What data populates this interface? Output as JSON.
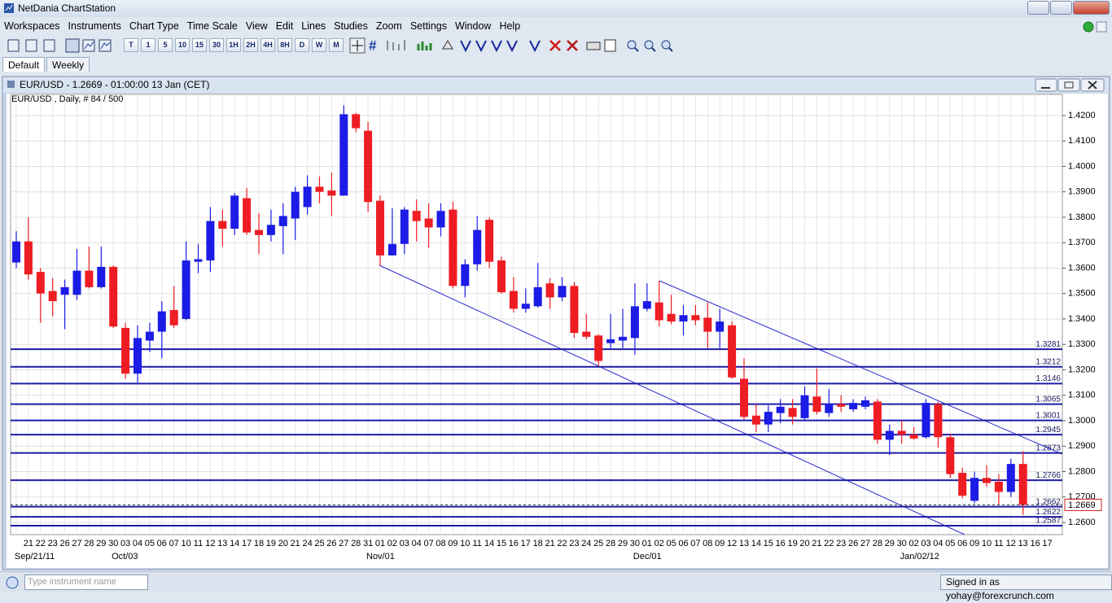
{
  "window": {
    "title": "NetDania ChartStation"
  },
  "menu": [
    "Workspaces",
    "Instruments",
    "Chart Type",
    "Time Scale",
    "View",
    "Edit",
    "Lines",
    "Studies",
    "Zoom",
    "Settings",
    "Window",
    "Help"
  ],
  "toolbar": {
    "timescales": [
      "T",
      "1",
      "5",
      "10",
      "15",
      "30",
      "1H",
      "2H",
      "4H",
      "8H",
      "D",
      "W",
      "M"
    ]
  },
  "tabs": [
    "Default",
    "Weekly"
  ],
  "chart_window": {
    "title": "EUR/USD - 1.2669 - 01:00:00 13 Jan (CET)"
  },
  "chart_data": {
    "type": "candlestick",
    "subtitle": "EUR/USD , Daily, # 84 / 500",
    "categories": [
      null,
      "21",
      "22",
      "23",
      "26",
      "27",
      "28",
      "29",
      "30",
      "03",
      "04",
      "05",
      "06",
      "07",
      "10",
      "11",
      "12",
      "13",
      "14",
      "17",
      "18",
      "19",
      "20",
      "21",
      "24",
      "25",
      "26",
      "27",
      "28",
      "31",
      "01",
      "02",
      "03",
      "04",
      "07",
      "08",
      "09",
      "10",
      "11",
      "14",
      "15",
      "16",
      "17",
      "18",
      "21",
      "22",
      "23",
      "24",
      "25",
      "28",
      "29",
      "30",
      "01",
      "02",
      "05",
      "06",
      "07",
      "08",
      "09",
      "12",
      "13",
      "14",
      "15",
      "16",
      "19",
      "20",
      "21",
      "22",
      "23",
      "26",
      "27",
      "28",
      "29",
      "30",
      "02",
      "03",
      "04",
      "05",
      "06",
      "09",
      "10",
      "11",
      "12",
      "13",
      "16",
      "17"
    ],
    "period_labels": [
      null,
      "Sep/21/11",
      null,
      null,
      null,
      null,
      null,
      null,
      null,
      "Oct/03",
      null,
      null,
      null,
      null,
      null,
      null,
      null,
      null,
      null,
      null,
      null,
      null,
      null,
      null,
      null,
      null,
      null,
      null,
      null,
      null,
      "Nov/01",
      null,
      null,
      null,
      null,
      null,
      null,
      null,
      null,
      null,
      null,
      null,
      null,
      null,
      null,
      null,
      null,
      null,
      null,
      null,
      null,
      null,
      "Dec/01",
      null,
      null,
      null,
      null,
      null,
      null,
      null,
      null,
      null,
      null,
      null,
      null,
      null,
      null,
      null,
      null,
      null,
      null,
      null,
      null,
      null,
      "Jan/02/12",
      null,
      null,
      null,
      null,
      null,
      null,
      null,
      null,
      null,
      null,
      null
    ],
    "open": [
      1.3622,
      1.3705,
      1.3585,
      1.351,
      1.3495,
      1.3495,
      1.359,
      1.3525,
      1.3605,
      1.3365,
      1.3185,
      1.3315,
      1.335,
      1.3435,
      1.34,
      1.3625,
      1.363,
      1.3785,
      1.3755,
      1.3875,
      1.375,
      1.373,
      1.3765,
      1.3795,
      1.384,
      1.392,
      1.3905,
      1.3885,
      1.4205,
      1.414,
      1.3865,
      1.365,
      1.3695,
      1.3825,
      1.3795,
      1.376,
      1.383,
      1.353,
      1.3615,
      1.379,
      1.363,
      1.351,
      1.344,
      1.345,
      1.354,
      1.3485,
      1.353,
      1.335,
      1.3335,
      1.3305,
      1.3315,
      1.3325,
      1.344,
      1.3465,
      1.342,
      1.339,
      1.3415,
      1.3405,
      1.335,
      1.3375,
      1.3165,
      1.302,
      1.2985,
      1.303,
      1.305,
      1.301,
      1.3095,
      1.303,
      1.3065,
      1.3045,
      1.3055,
      1.3075,
      1.2925,
      1.296,
      1.2945,
      1.2935,
      1.3065,
      1.2935,
      1.2795,
      1.2685,
      1.2775,
      1.276,
      1.272,
      1.283,
      null,
      null
    ],
    "high": [
      1.3745,
      1.38,
      1.36,
      1.356,
      1.3555,
      1.3675,
      1.3685,
      1.3685,
      1.361,
      1.3385,
      1.3375,
      1.3385,
      1.347,
      1.353,
      1.3705,
      1.3695,
      1.384,
      1.383,
      1.3895,
      1.3915,
      1.3815,
      1.383,
      1.3855,
      1.392,
      1.3965,
      1.396,
      1.3975,
      1.424,
      1.421,
      1.4175,
      1.3885,
      1.3835,
      1.384,
      1.387,
      1.3855,
      1.3855,
      1.386,
      1.3635,
      1.3805,
      1.38,
      1.3645,
      1.3565,
      1.352,
      1.362,
      1.356,
      1.3565,
      1.3545,
      1.342,
      1.334,
      1.342,
      1.344,
      1.354,
      1.354,
      1.355,
      1.3495,
      1.3455,
      1.3455,
      1.3465,
      1.344,
      1.339,
      1.3245,
      1.3065,
      1.306,
      1.3085,
      1.3085,
      1.3135,
      1.3205,
      1.3125,
      1.31,
      1.3085,
      1.3095,
      1.3085,
      1.2985,
      1.3,
      1.2975,
      1.3085,
      1.3075,
      1.295,
      1.2815,
      1.28,
      1.2825,
      1.279,
      1.285,
      1.288,
      null,
      null
    ],
    "low": [
      1.36,
      1.3555,
      1.3385,
      1.341,
      1.336,
      1.3475,
      1.352,
      1.352,
      1.3365,
      1.3165,
      1.315,
      1.327,
      1.3245,
      1.3365,
      1.3395,
      1.358,
      1.3585,
      1.3685,
      1.373,
      1.373,
      1.3655,
      1.3705,
      1.3655,
      1.371,
      1.381,
      1.3855,
      1.3805,
      1.3885,
      1.4135,
      1.382,
      1.361,
      1.365,
      1.3655,
      1.3705,
      1.368,
      1.3725,
      1.352,
      1.3485,
      1.359,
      1.36,
      1.35,
      1.3425,
      1.3425,
      1.3445,
      1.344,
      1.347,
      1.3325,
      1.332,
      1.3215,
      1.328,
      1.3285,
      1.326,
      1.343,
      1.337,
      1.338,
      1.3335,
      1.3375,
      1.3285,
      1.3285,
      1.3165,
      1.3005,
      1.2955,
      1.2955,
      1.299,
      1.2985,
      1.3,
      1.3025,
      1.3015,
      1.3035,
      1.3035,
      1.3045,
      1.291,
      1.2865,
      1.291,
      1.2925,
      1.293,
      1.2895,
      1.2775,
      1.2695,
      1.2675,
      1.274,
      1.267,
      1.27,
      1.263,
      null,
      null
    ],
    "close": [
      1.3705,
      1.3575,
      1.35,
      1.347,
      1.3525,
      1.359,
      1.3525,
      1.3605,
      1.337,
      1.3185,
      1.3325,
      1.335,
      1.343,
      1.3375,
      1.363,
      1.3635,
      1.3785,
      1.3755,
      1.3885,
      1.374,
      1.373,
      1.377,
      1.3805,
      1.39,
      1.392,
      1.39,
      1.3885,
      1.4205,
      1.415,
      1.386,
      1.365,
      1.3695,
      1.383,
      1.3785,
      1.376,
      1.3825,
      1.353,
      1.3615,
      1.375,
      1.3625,
      1.3505,
      1.344,
      1.346,
      1.3525,
      1.3485,
      1.353,
      1.3345,
      1.333,
      1.3235,
      1.332,
      1.333,
      1.345,
      1.347,
      1.3395,
      1.339,
      1.3415,
      1.3395,
      1.335,
      1.339,
      1.317,
      1.3015,
      1.2985,
      1.3035,
      1.3055,
      1.3015,
      1.31,
      1.3035,
      1.3065,
      1.3055,
      1.307,
      1.308,
      1.2925,
      1.296,
      1.2945,
      1.293,
      1.307,
      1.2935,
      1.279,
      1.2705,
      1.2775,
      1.2755,
      1.272,
      1.283,
      1.2669,
      null,
      null
    ],
    "up_color": "#1c1ce6",
    "down_color": "#ee1d23",
    "ylim": [
      1.2552,
      1.4283
    ],
    "yticks": [
      {
        "value": 1.42,
        "label": "1.4200"
      },
      {
        "value": 1.41,
        "label": "1.4100"
      },
      {
        "value": 1.4,
        "label": "1.4000"
      },
      {
        "value": 1.39,
        "label": "1.3900"
      },
      {
        "value": 1.38,
        "label": "1.3800"
      },
      {
        "value": 1.37,
        "label": "1.3700"
      },
      {
        "value": 1.36,
        "label": "1.3600"
      },
      {
        "value": 1.35,
        "label": "1.3500"
      },
      {
        "value": 1.34,
        "label": "1.3400"
      },
      {
        "value": 1.33,
        "label": "1.3300"
      },
      {
        "value": 1.32,
        "label": "1.3200"
      },
      {
        "value": 1.31,
        "label": "1.3100"
      },
      {
        "value": 1.3,
        "label": "1.3000"
      },
      {
        "value": 1.29,
        "label": "1.2900"
      },
      {
        "value": 1.28,
        "label": "1.2800"
      },
      {
        "value": 1.27,
        "label": "1.2700"
      },
      {
        "value": 1.26,
        "label": "1.2600"
      }
    ],
    "grid": true,
    "levels": [
      1.3281,
      1.3212,
      1.3146,
      1.3065,
      1.3001,
      1.2945,
      1.2873,
      1.2766,
      1.2662,
      1.2622,
      1.2587
    ],
    "level_color": "#1c1ca8",
    "last_value": 1.2669,
    "last_color": "#d21f1f"
  },
  "status": {
    "search_placeholder": "Type instrument name",
    "user": "Signed in as yohay@forexcrunch.com"
  }
}
